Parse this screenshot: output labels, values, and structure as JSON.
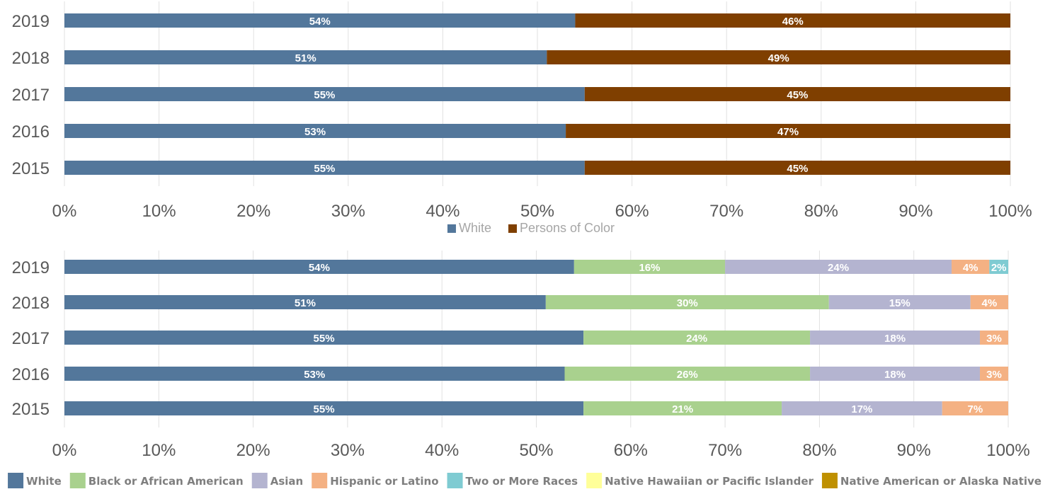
{
  "chart_data": [
    {
      "type": "bar",
      "orientation": "horizontal",
      "stacked": true,
      "categories": [
        "2019",
        "2018",
        "2017",
        "2016",
        "2015"
      ],
      "series": [
        {
          "name": "White",
          "color": "#53779b",
          "values": [
            54,
            51,
            55,
            53,
            55
          ]
        },
        {
          "name": "Persons of Color",
          "color": "#7f3f00",
          "values": [
            46,
            49,
            45,
            47,
            45
          ]
        }
      ],
      "xlim": [
        0,
        100
      ],
      "xticks": [
        "0%",
        "10%",
        "20%",
        "30%",
        "40%",
        "50%",
        "60%",
        "70%",
        "80%",
        "90%",
        "100%"
      ],
      "grid": true,
      "legend": "bottom",
      "data_labels": true
    },
    {
      "type": "bar",
      "orientation": "horizontal",
      "stacked": true,
      "categories": [
        "2019",
        "2018",
        "2017",
        "2016",
        "2015"
      ],
      "series": [
        {
          "name": "White",
          "color": "#53779b",
          "values": [
            54,
            51,
            55,
            53,
            55
          ]
        },
        {
          "name": "Black or African American",
          "color": "#a9d18e",
          "values": [
            16,
            30,
            24,
            26,
            21
          ]
        },
        {
          "name": "Asian",
          "color": "#b4b4d0",
          "values": [
            24,
            15,
            18,
            18,
            17
          ]
        },
        {
          "name": "Hispanic or Latino",
          "color": "#f4b183",
          "values": [
            4,
            4,
            3,
            3,
            7
          ]
        },
        {
          "name": "Two or More Races",
          "color": "#7fcbd2",
          "values": [
            2,
            0,
            0,
            0,
            0
          ]
        },
        {
          "name": "Native Hawaiian or Pacific Islander",
          "color": "#ffff99",
          "values": [
            0,
            0,
            0,
            0,
            0
          ]
        },
        {
          "name": "Native American or Alaska Native",
          "color": "#bf9000",
          "values": [
            0,
            0,
            0,
            0,
            0
          ]
        }
      ],
      "xlim": [
        0,
        100
      ],
      "xticks": [
        "0%",
        "10%",
        "20%",
        "30%",
        "40%",
        "50%",
        "60%",
        "70%",
        "80%",
        "90%",
        "100%"
      ],
      "grid": true,
      "legend": "bottom",
      "data_labels": true
    }
  ]
}
